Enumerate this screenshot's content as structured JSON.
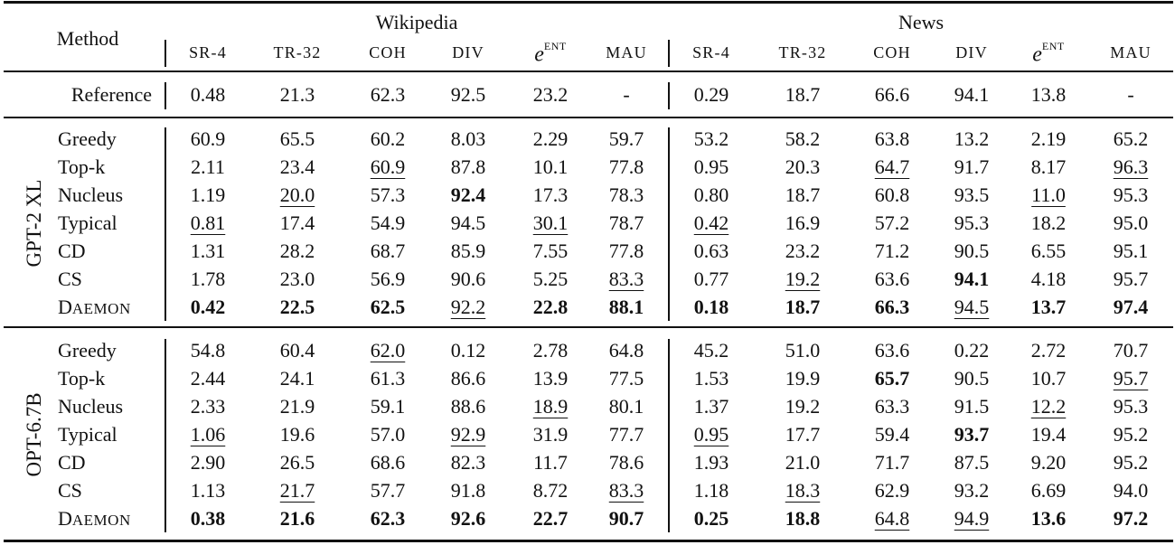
{
  "table": {
    "method_header": "Method",
    "groups": [
      {
        "label": "Wikipedia"
      },
      {
        "label": "News"
      }
    ],
    "metric_headers": [
      {
        "label": "SR-4"
      },
      {
        "label": "TR-32"
      },
      {
        "label": "COH"
      },
      {
        "label": "DIV"
      },
      {
        "label": "e",
        "sup": "ENT"
      },
      {
        "label": "MAU"
      }
    ],
    "reference": {
      "label": "Reference",
      "wikipedia": [
        "0.48",
        "21.3",
        "62.3",
        "92.5",
        "23.2",
        "-"
      ],
      "news": [
        "0.29",
        "18.7",
        "66.6",
        "94.1",
        "13.8",
        "-"
      ]
    },
    "models": [
      {
        "name": "GPT-2 XL",
        "rows": [
          {
            "method": "Greedy",
            "wikipedia": [
              {
                "v": "60.9"
              },
              {
                "v": "65.5"
              },
              {
                "v": "60.2"
              },
              {
                "v": "8.03"
              },
              {
                "v": "2.29"
              },
              {
                "v": "59.7"
              }
            ],
            "news": [
              {
                "v": "53.2"
              },
              {
                "v": "58.2"
              },
              {
                "v": "63.8"
              },
              {
                "v": "13.2"
              },
              {
                "v": "2.19"
              },
              {
                "v": "65.2"
              }
            ]
          },
          {
            "method": "Top-k",
            "wikipedia": [
              {
                "v": "2.11"
              },
              {
                "v": "23.4"
              },
              {
                "v": "60.9",
                "u": true
              },
              {
                "v": "87.8"
              },
              {
                "v": "10.1"
              },
              {
                "v": "77.8"
              }
            ],
            "news": [
              {
                "v": "0.95"
              },
              {
                "v": "20.3"
              },
              {
                "v": "64.7",
                "u": true
              },
              {
                "v": "91.7"
              },
              {
                "v": "8.17"
              },
              {
                "v": "96.3",
                "u": true
              }
            ]
          },
          {
            "method": "Nucleus",
            "wikipedia": [
              {
                "v": "1.19"
              },
              {
                "v": "20.0",
                "u": true
              },
              {
                "v": "57.3"
              },
              {
                "v": "92.4",
                "b": true
              },
              {
                "v": "17.3"
              },
              {
                "v": "78.3"
              }
            ],
            "news": [
              {
                "v": "0.80"
              },
              {
                "v": "18.7"
              },
              {
                "v": "60.8"
              },
              {
                "v": "93.5"
              },
              {
                "v": "11.0",
                "u": true
              },
              {
                "v": "95.3"
              }
            ]
          },
          {
            "method": "Typical",
            "wikipedia": [
              {
                "v": "0.81",
                "u": true
              },
              {
                "v": "17.4"
              },
              {
                "v": "54.9"
              },
              {
                "v": "94.5"
              },
              {
                "v": "30.1",
                "u": true
              },
              {
                "v": "78.7"
              }
            ],
            "news": [
              {
                "v": "0.42",
                "u": true
              },
              {
                "v": "16.9"
              },
              {
                "v": "57.2"
              },
              {
                "v": "95.3"
              },
              {
                "v": "18.2"
              },
              {
                "v": "95.0"
              }
            ]
          },
          {
            "method": "CD",
            "wikipedia": [
              {
                "v": "1.31"
              },
              {
                "v": "28.2"
              },
              {
                "v": "68.7"
              },
              {
                "v": "85.9"
              },
              {
                "v": "7.55"
              },
              {
                "v": "77.8"
              }
            ],
            "news": [
              {
                "v": "0.63"
              },
              {
                "v": "23.2"
              },
              {
                "v": "71.2"
              },
              {
                "v": "90.5"
              },
              {
                "v": "6.55"
              },
              {
                "v": "95.1"
              }
            ]
          },
          {
            "method": "CS",
            "wikipedia": [
              {
                "v": "1.78"
              },
              {
                "v": "23.0"
              },
              {
                "v": "56.9"
              },
              {
                "v": "90.6"
              },
              {
                "v": "5.25"
              },
              {
                "v": "83.3",
                "u": true
              }
            ],
            "news": [
              {
                "v": "0.77"
              },
              {
                "v": "19.2",
                "u": true
              },
              {
                "v": "63.6"
              },
              {
                "v": "94.1",
                "b": true
              },
              {
                "v": "4.18"
              },
              {
                "v": "95.7"
              }
            ]
          },
          {
            "method": "Daemon",
            "small_caps": true,
            "wikipedia": [
              {
                "v": "0.42",
                "b": true
              },
              {
                "v": "22.5",
                "b": true
              },
              {
                "v": "62.5",
                "b": true
              },
              {
                "v": "92.2",
                "u": true
              },
              {
                "v": "22.8",
                "b": true
              },
              {
                "v": "88.1",
                "b": true
              }
            ],
            "news": [
              {
                "v": "0.18",
                "b": true
              },
              {
                "v": "18.7",
                "b": true
              },
              {
                "v": "66.3",
                "b": true
              },
              {
                "v": "94.5",
                "u": true
              },
              {
                "v": "13.7",
                "b": true
              },
              {
                "v": "97.4",
                "b": true
              }
            ]
          }
        ]
      },
      {
        "name": "OPT-6.7B",
        "rows": [
          {
            "method": "Greedy",
            "wikipedia": [
              {
                "v": "54.8"
              },
              {
                "v": "60.4"
              },
              {
                "v": "62.0",
                "u": true
              },
              {
                "v": "0.12"
              },
              {
                "v": "2.78"
              },
              {
                "v": "64.8"
              }
            ],
            "news": [
              {
                "v": "45.2"
              },
              {
                "v": "51.0"
              },
              {
                "v": "63.6"
              },
              {
                "v": "0.22"
              },
              {
                "v": "2.72"
              },
              {
                "v": "70.7"
              }
            ]
          },
          {
            "method": "Top-k",
            "wikipedia": [
              {
                "v": "2.44"
              },
              {
                "v": "24.1"
              },
              {
                "v": "61.3"
              },
              {
                "v": "86.6"
              },
              {
                "v": "13.9"
              },
              {
                "v": "77.5"
              }
            ],
            "news": [
              {
                "v": "1.53"
              },
              {
                "v": "19.9"
              },
              {
                "v": "65.7",
                "b": true
              },
              {
                "v": "90.5"
              },
              {
                "v": "10.7"
              },
              {
                "v": "95.7",
                "u": true
              }
            ]
          },
          {
            "method": "Nucleus",
            "wikipedia": [
              {
                "v": "2.33"
              },
              {
                "v": "21.9"
              },
              {
                "v": "59.1"
              },
              {
                "v": "88.6"
              },
              {
                "v": "18.9",
                "u": true
              },
              {
                "v": "80.1"
              }
            ],
            "news": [
              {
                "v": "1.37"
              },
              {
                "v": "19.2"
              },
              {
                "v": "63.3"
              },
              {
                "v": "91.5"
              },
              {
                "v": "12.2",
                "u": true
              },
              {
                "v": "95.3"
              }
            ]
          },
          {
            "method": "Typical",
            "wikipedia": [
              {
                "v": "1.06",
                "u": true
              },
              {
                "v": "19.6"
              },
              {
                "v": "57.0"
              },
              {
                "v": "92.9",
                "u": true
              },
              {
                "v": "31.9"
              },
              {
                "v": "77.7"
              }
            ],
            "news": [
              {
                "v": "0.95",
                "u": true
              },
              {
                "v": "17.7"
              },
              {
                "v": "59.4"
              },
              {
                "v": "93.7",
                "b": true
              },
              {
                "v": "19.4"
              },
              {
                "v": "95.2"
              }
            ]
          },
          {
            "method": "CD",
            "wikipedia": [
              {
                "v": "2.90"
              },
              {
                "v": "26.5"
              },
              {
                "v": "68.6"
              },
              {
                "v": "82.3"
              },
              {
                "v": "11.7"
              },
              {
                "v": "78.6"
              }
            ],
            "news": [
              {
                "v": "1.93"
              },
              {
                "v": "21.0"
              },
              {
                "v": "71.7"
              },
              {
                "v": "87.5"
              },
              {
                "v": "9.20"
              },
              {
                "v": "95.2"
              }
            ]
          },
          {
            "method": "CS",
            "wikipedia": [
              {
                "v": "1.13"
              },
              {
                "v": "21.7",
                "u": true
              },
              {
                "v": "57.7"
              },
              {
                "v": "91.8"
              },
              {
                "v": "8.72"
              },
              {
                "v": "83.3",
                "u": true
              }
            ],
            "news": [
              {
                "v": "1.18"
              },
              {
                "v": "18.3",
                "u": true
              },
              {
                "v": "62.9"
              },
              {
                "v": "93.2"
              },
              {
                "v": "6.69"
              },
              {
                "v": "94.0"
              }
            ]
          },
          {
            "method": "Daemon",
            "small_caps": true,
            "wikipedia": [
              {
                "v": "0.38",
                "b": true
              },
              {
                "v": "21.6",
                "b": true
              },
              {
                "v": "62.3",
                "b": true
              },
              {
                "v": "92.6",
                "b": true
              },
              {
                "v": "22.7",
                "b": true
              },
              {
                "v": "90.7",
                "b": true
              }
            ],
            "news": [
              {
                "v": "0.25",
                "b": true
              },
              {
                "v": "18.8",
                "b": true
              },
              {
                "v": "64.8",
                "u": true
              },
              {
                "v": "94.9",
                "u": true
              },
              {
                "v": "13.6",
                "b": true
              },
              {
                "v": "97.2",
                "b": true
              }
            ]
          }
        ]
      }
    ]
  }
}
